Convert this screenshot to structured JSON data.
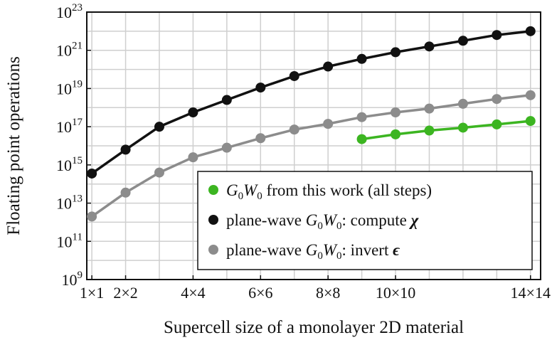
{
  "chart_data": {
    "type": "line",
    "xlabel": "Supercell size of a monolayer 2D material",
    "ylabel": "Floating point operations",
    "x_scale": "linear",
    "y_scale": "log",
    "xlim": [
      0.85,
      14.3
    ],
    "ylim_exponent": [
      9,
      23
    ],
    "grid": true,
    "legend_position": "lower-right",
    "x_ticks": [
      {
        "n": 1,
        "label": "1×1"
      },
      {
        "n": 2,
        "label": "2×2"
      },
      {
        "n": 4,
        "label": "4×4"
      },
      {
        "n": 6,
        "label": "6×6"
      },
      {
        "n": 8,
        "label": "8×8"
      },
      {
        "n": 10,
        "label": "10×10"
      },
      {
        "n": 14,
        "label": "14×14"
      }
    ],
    "y_ticks": [
      {
        "base": "10",
        "exp": "9"
      },
      {
        "base": "10",
        "exp": "11"
      },
      {
        "base": "10",
        "exp": "13"
      },
      {
        "base": "10",
        "exp": "15"
      },
      {
        "base": "10",
        "exp": "17"
      },
      {
        "base": "10",
        "exp": "19"
      },
      {
        "base": "10",
        "exp": "21"
      },
      {
        "base": "10",
        "exp": "23"
      }
    ],
    "series": [
      {
        "name": "G0W0 from this work (all steps)",
        "color": "#3cb521",
        "x": [
          9,
          10,
          11,
          12,
          13,
          14
        ],
        "log10_y": [
          16.35,
          16.6,
          16.8,
          16.95,
          17.12,
          17.3
        ]
      },
      {
        "name": "plane-wave G0W0: compute χ",
        "color": "#111111",
        "x": [
          1,
          2,
          3,
          4,
          5,
          6,
          7,
          8,
          9,
          10,
          11,
          12,
          13,
          14
        ],
        "log10_y": [
          14.55,
          15.8,
          17.0,
          17.75,
          18.4,
          19.05,
          19.65,
          20.15,
          20.55,
          20.9,
          21.2,
          21.5,
          21.8,
          22.0
        ]
      },
      {
        "name": "plane-wave G0W0: invert ϵ",
        "color": "#8c8c8c",
        "x": [
          1,
          2,
          3,
          4,
          5,
          6,
          7,
          8,
          9,
          10,
          11,
          12,
          13,
          14
        ],
        "log10_y": [
          12.3,
          13.55,
          14.6,
          15.4,
          15.9,
          16.4,
          16.85,
          17.15,
          17.5,
          17.75,
          17.95,
          18.2,
          18.45,
          18.65
        ]
      }
    ],
    "legend": [
      {
        "pre": "",
        "G": "G",
        "G_sub": "0",
        "W": "W",
        "W_sub": "0",
        "post": " from this work (all steps)",
        "symbol": "",
        "color": "#3cb521"
      },
      {
        "pre": "plane-wave ",
        "G": "G",
        "G_sub": "0",
        "W": "W",
        "W_sub": "0",
        "post": ": compute ",
        "symbol": "χ",
        "color": "#111111"
      },
      {
        "pre": "plane-wave ",
        "G": "G",
        "G_sub": "0",
        "W": "W",
        "W_sub": "0",
        "post": ": invert ",
        "symbol": "ϵ",
        "color": "#8c8c8c"
      }
    ]
  }
}
